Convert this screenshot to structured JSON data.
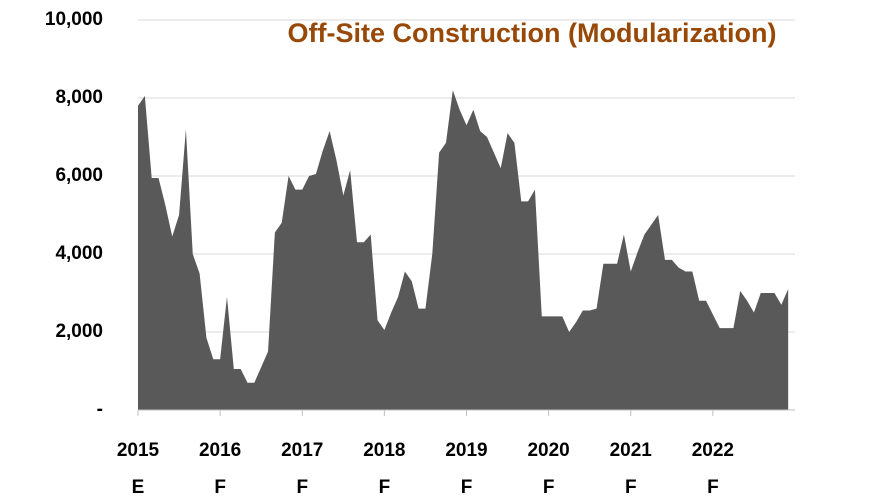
{
  "chart_data": {
    "type": "area",
    "title": "Off-Site Construction (Modularization)",
    "color": "#595959",
    "title_color": "#984807",
    "grid": true,
    "ylim": [
      0,
      10000
    ],
    "yticks": [
      {
        "value": 0,
        "label": "-"
      },
      {
        "value": 2000,
        "label": "2,000"
      },
      {
        "value": 4000,
        "label": "4,000"
      },
      {
        "value": 6000,
        "label": "6,000"
      },
      {
        "value": 8000,
        "label": "8,000"
      },
      {
        "value": 10000,
        "label": "10,000"
      }
    ],
    "categories": [
      "2015",
      null,
      null,
      null,
      null,
      null,
      null,
      null,
      null,
      null,
      null,
      null,
      "2016",
      null,
      null,
      null,
      null,
      null,
      null,
      null,
      null,
      null,
      null,
      null,
      "2017",
      null,
      null,
      null,
      null,
      null,
      null,
      null,
      null,
      null,
      null,
      null,
      "2018",
      null,
      null,
      null,
      null,
      null,
      null,
      null,
      null,
      null,
      null,
      null,
      "2019",
      null,
      null,
      null,
      null,
      null,
      null,
      null,
      null,
      null,
      null,
      null,
      "2020",
      null,
      null,
      null,
      null,
      null,
      null,
      null,
      null,
      null,
      null,
      null,
      "2021",
      null,
      null,
      null,
      null,
      null,
      null,
      null,
      null,
      null,
      null,
      null,
      "2022",
      null,
      null,
      null,
      null,
      null,
      null,
      null,
      null,
      null,
      null,
      null
    ],
    "category_sublabels": [
      "E",
      null,
      null,
      null,
      null,
      null,
      null,
      null,
      null,
      null,
      null,
      null,
      "F",
      null,
      null,
      null,
      null,
      null,
      null,
      null,
      null,
      null,
      null,
      null,
      "F",
      null,
      null,
      null,
      null,
      null,
      null,
      null,
      null,
      null,
      null,
      null,
      "F",
      null,
      null,
      null,
      null,
      null,
      null,
      null,
      null,
      null,
      null,
      null,
      "F",
      null,
      null,
      null,
      null,
      null,
      null,
      null,
      null,
      null,
      null,
      null,
      "F",
      null,
      null,
      null,
      null,
      null,
      null,
      null,
      null,
      null,
      null,
      null,
      "F",
      null,
      null,
      null,
      null,
      null,
      null,
      null,
      null,
      null,
      null,
      null,
      "F",
      null,
      null,
      null,
      null,
      null,
      null,
      null,
      null,
      null,
      null,
      null
    ],
    "values": [
      7800,
      8050,
      5950,
      5950,
      5250,
      4450,
      5000,
      7200,
      4000,
      3500,
      1850,
      1300,
      1300,
      2900,
      1050,
      1050,
      700,
      700,
      1100,
      1500,
      4550,
      4800,
      6000,
      5650,
      5650,
      6000,
      6050,
      6650,
      7150,
      6400,
      5500,
      6150,
      4300,
      4300,
      4500,
      2300,
      2050,
      2500,
      2900,
      3550,
      3300,
      2600,
      2600,
      4000,
      6600,
      6850,
      8200,
      7700,
      7300,
      7700,
      7150,
      7000,
      6600,
      6200,
      7100,
      6850,
      5350,
      5350,
      5650,
      2400,
      2400,
      2400,
      2400,
      2000,
      2250,
      2550,
      2550,
      2600,
      3750,
      3750,
      3750,
      4500,
      3550,
      4050,
      4500,
      4750,
      5000,
      3850,
      3850,
      3650,
      3550,
      3550,
      2800,
      2800,
      2450,
      2100,
      2100,
      2100,
      3050,
      2800,
      2500,
      3000,
      3000,
      3000,
      2700,
      3100
    ]
  }
}
